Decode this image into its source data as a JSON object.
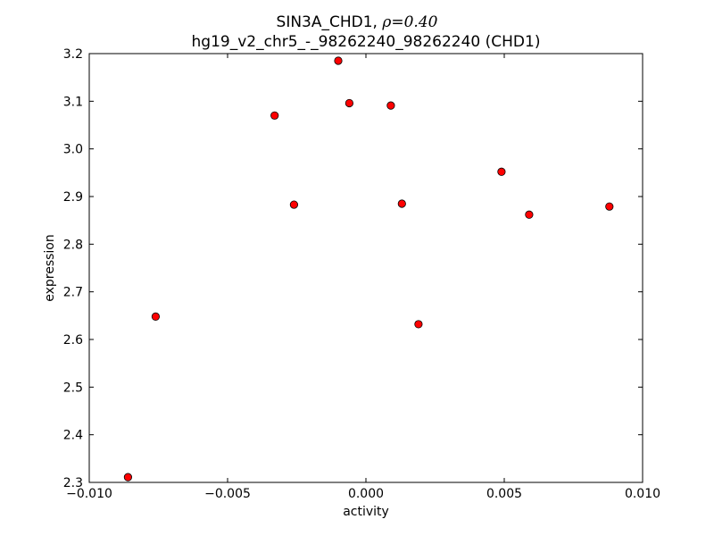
{
  "chart_data": {
    "type": "scatter",
    "title_line1": "SIN3A_CHD1, ",
    "title_rho": "ρ=0.40",
    "title_line2": "hg19_v2_chr5_-_98262240_98262240 (CHD1)",
    "xlabel": "activity",
    "ylabel": "expression",
    "xlim": [
      -0.01,
      0.01
    ],
    "ylim": [
      2.3,
      3.2
    ],
    "xticks": [
      -0.01,
      -0.005,
      0.0,
      0.005,
      0.01
    ],
    "xtick_labels": [
      "−0.010",
      "−0.005",
      "0.000",
      "0.005",
      "0.010"
    ],
    "yticks": [
      2.3,
      2.4,
      2.5,
      2.6,
      2.7,
      2.8,
      2.9,
      3.0,
      3.1,
      3.2
    ],
    "ytick_labels": [
      "2.3",
      "2.4",
      "2.5",
      "2.6",
      "2.7",
      "2.8",
      "2.9",
      "3.0",
      "3.1",
      "3.2"
    ],
    "grid": false,
    "marker_color": "#ff0000",
    "marker_edge_color": "#000000",
    "points": [
      {
        "x": -0.0086,
        "y": 2.311
      },
      {
        "x": -0.0076,
        "y": 2.648
      },
      {
        "x": -0.0033,
        "y": 3.07
      },
      {
        "x": -0.0026,
        "y": 2.883
      },
      {
        "x": -0.001,
        "y": 3.185
      },
      {
        "x": -0.0006,
        "y": 3.096
      },
      {
        "x": 0.0009,
        "y": 3.091
      },
      {
        "x": 0.0013,
        "y": 2.885
      },
      {
        "x": 0.0019,
        "y": 2.632
      },
      {
        "x": 0.0049,
        "y": 2.952
      },
      {
        "x": 0.0059,
        "y": 2.862
      },
      {
        "x": 0.0088,
        "y": 2.879
      }
    ]
  }
}
